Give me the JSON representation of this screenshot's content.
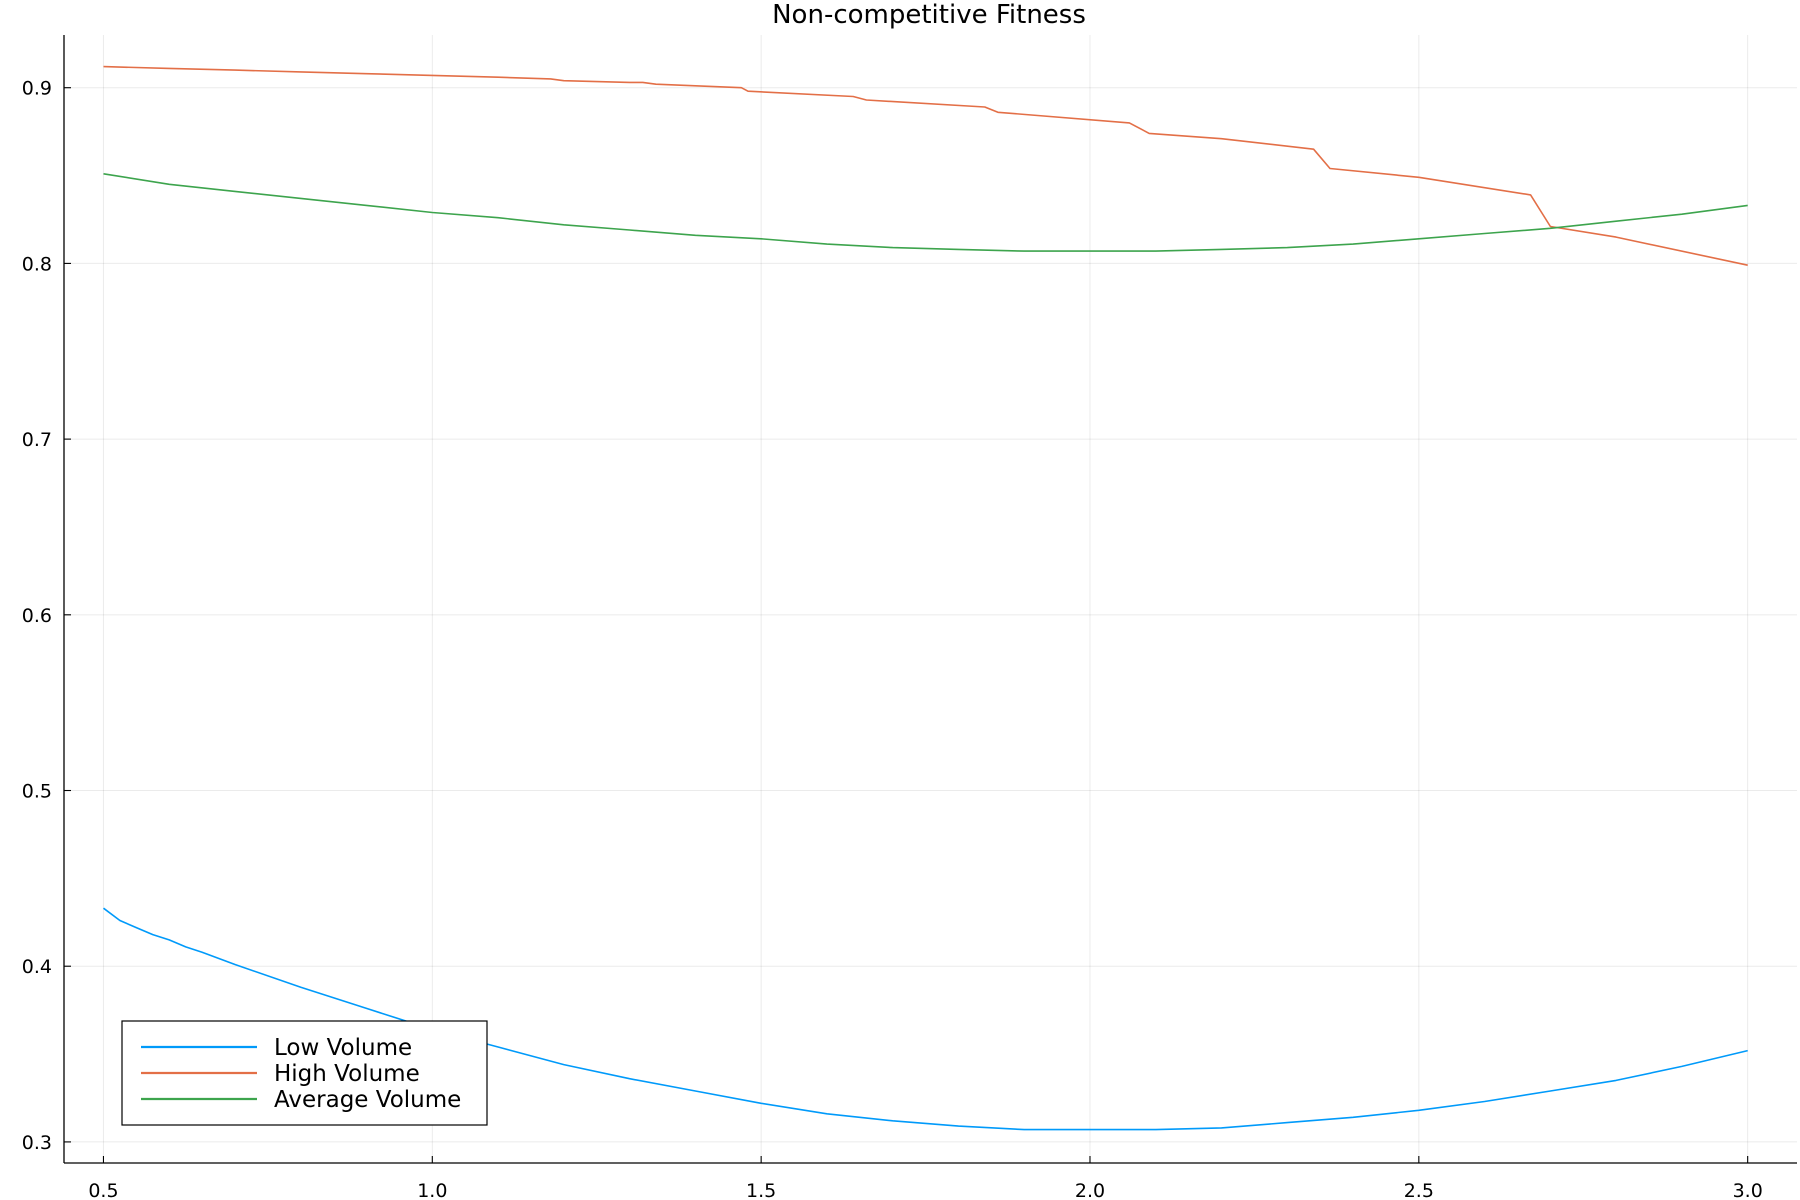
{
  "chart_data": {
    "type": "line",
    "title": "Non-competitive Fitness",
    "xlabel": "",
    "ylabel": "",
    "xlim": [
      0.44,
      3.075
    ],
    "ylim": [
      0.288,
      0.93
    ],
    "xticks": [
      0.5,
      1.0,
      1.5,
      2.0,
      2.5,
      3.0
    ],
    "xtick_labels": [
      "0.5",
      "1.0",
      "1.5",
      "2.0",
      "2.5",
      "3.0"
    ],
    "yticks": [
      0.3,
      0.4,
      0.5,
      0.6,
      0.7,
      0.8,
      0.9
    ],
    "ytick_labels": [
      "0.3",
      "0.4",
      "0.5",
      "0.6",
      "0.7",
      "0.8",
      "0.9"
    ],
    "grid": true,
    "legend_position": "bottom-left",
    "series": [
      {
        "name": "Low Volume",
        "color": "#009AFA",
        "x": [
          0.5,
          0.525,
          0.55,
          0.575,
          0.6,
          0.625,
          0.65,
          0.7,
          0.8,
          0.9,
          1.0,
          1.1,
          1.2,
          1.3,
          1.4,
          1.5,
          1.6,
          1.7,
          1.8,
          1.9,
          2.0,
          2.1,
          2.2,
          2.3,
          2.4,
          2.5,
          2.6,
          2.7,
          2.8,
          2.9,
          3.0
        ],
        "y": [
          0.433,
          0.426,
          0.422,
          0.418,
          0.415,
          0.411,
          0.408,
          0.401,
          0.388,
          0.376,
          0.364,
          0.354,
          0.344,
          0.336,
          0.329,
          0.322,
          0.316,
          0.312,
          0.309,
          0.307,
          0.307,
          0.307,
          0.308,
          0.311,
          0.314,
          0.318,
          0.323,
          0.329,
          0.335,
          0.343,
          0.352
        ]
      },
      {
        "name": "High Volume",
        "color": "#E36F47",
        "x": [
          0.5,
          0.6,
          0.7,
          0.8,
          0.9,
          1.0,
          1.1,
          1.18,
          1.2,
          1.3,
          1.32,
          1.34,
          1.47,
          1.48,
          1.64,
          1.66,
          1.84,
          1.86,
          2.06,
          2.09,
          2.2,
          2.34,
          2.365,
          2.5,
          2.67,
          2.7,
          2.8,
          3.0
        ],
        "y": [
          0.912,
          0.911,
          0.91,
          0.909,
          0.908,
          0.907,
          0.906,
          0.905,
          0.904,
          0.903,
          0.903,
          0.902,
          0.9,
          0.898,
          0.895,
          0.893,
          0.889,
          0.886,
          0.88,
          0.874,
          0.871,
          0.865,
          0.854,
          0.849,
          0.839,
          0.821,
          0.815,
          0.799
        ]
      },
      {
        "name": "Average Volume",
        "color": "#3DA44D",
        "x": [
          0.5,
          0.6,
          0.7,
          0.8,
          0.9,
          1.0,
          1.1,
          1.2,
          1.3,
          1.4,
          1.5,
          1.6,
          1.7,
          1.8,
          1.9,
          2.0,
          2.1,
          2.2,
          2.3,
          2.4,
          2.5,
          2.6,
          2.7,
          2.8,
          2.9,
          3.0
        ],
        "y": [
          0.851,
          0.845,
          0.841,
          0.837,
          0.833,
          0.829,
          0.826,
          0.822,
          0.819,
          0.816,
          0.814,
          0.811,
          0.809,
          0.808,
          0.807,
          0.807,
          0.807,
          0.808,
          0.809,
          0.811,
          0.814,
          0.817,
          0.82,
          0.824,
          0.828,
          0.833
        ]
      }
    ]
  }
}
